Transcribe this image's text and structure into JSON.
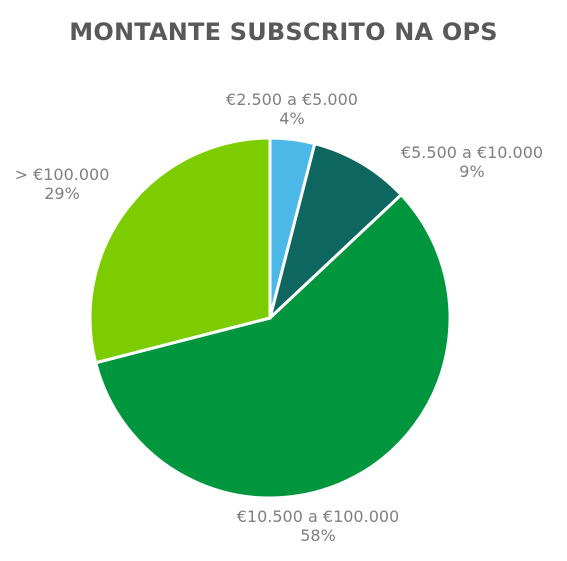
{
  "chart_data": {
    "type": "pie",
    "title": "MONTANTE SUBSCRITO NA OPS",
    "slices": [
      {
        "label": "€2.500 a €5.000",
        "value": 4,
        "percent_label": "4%",
        "color": "#4cb8e8"
      },
      {
        "label": "€5.500 a €10.000",
        "value": 9,
        "percent_label": "9%",
        "color": "#0d6660"
      },
      {
        "label": "€10.500 a €100.000",
        "value": 58,
        "percent_label": "58%",
        "color": "#00963d"
      },
      {
        "label": "> €100.000",
        "value": 29,
        "percent_label": "29%",
        "color": "#7ccc00"
      }
    ],
    "start_angle_degrees": 0,
    "direction": "clockwise",
    "legend": "none",
    "data_labels": "outside"
  }
}
